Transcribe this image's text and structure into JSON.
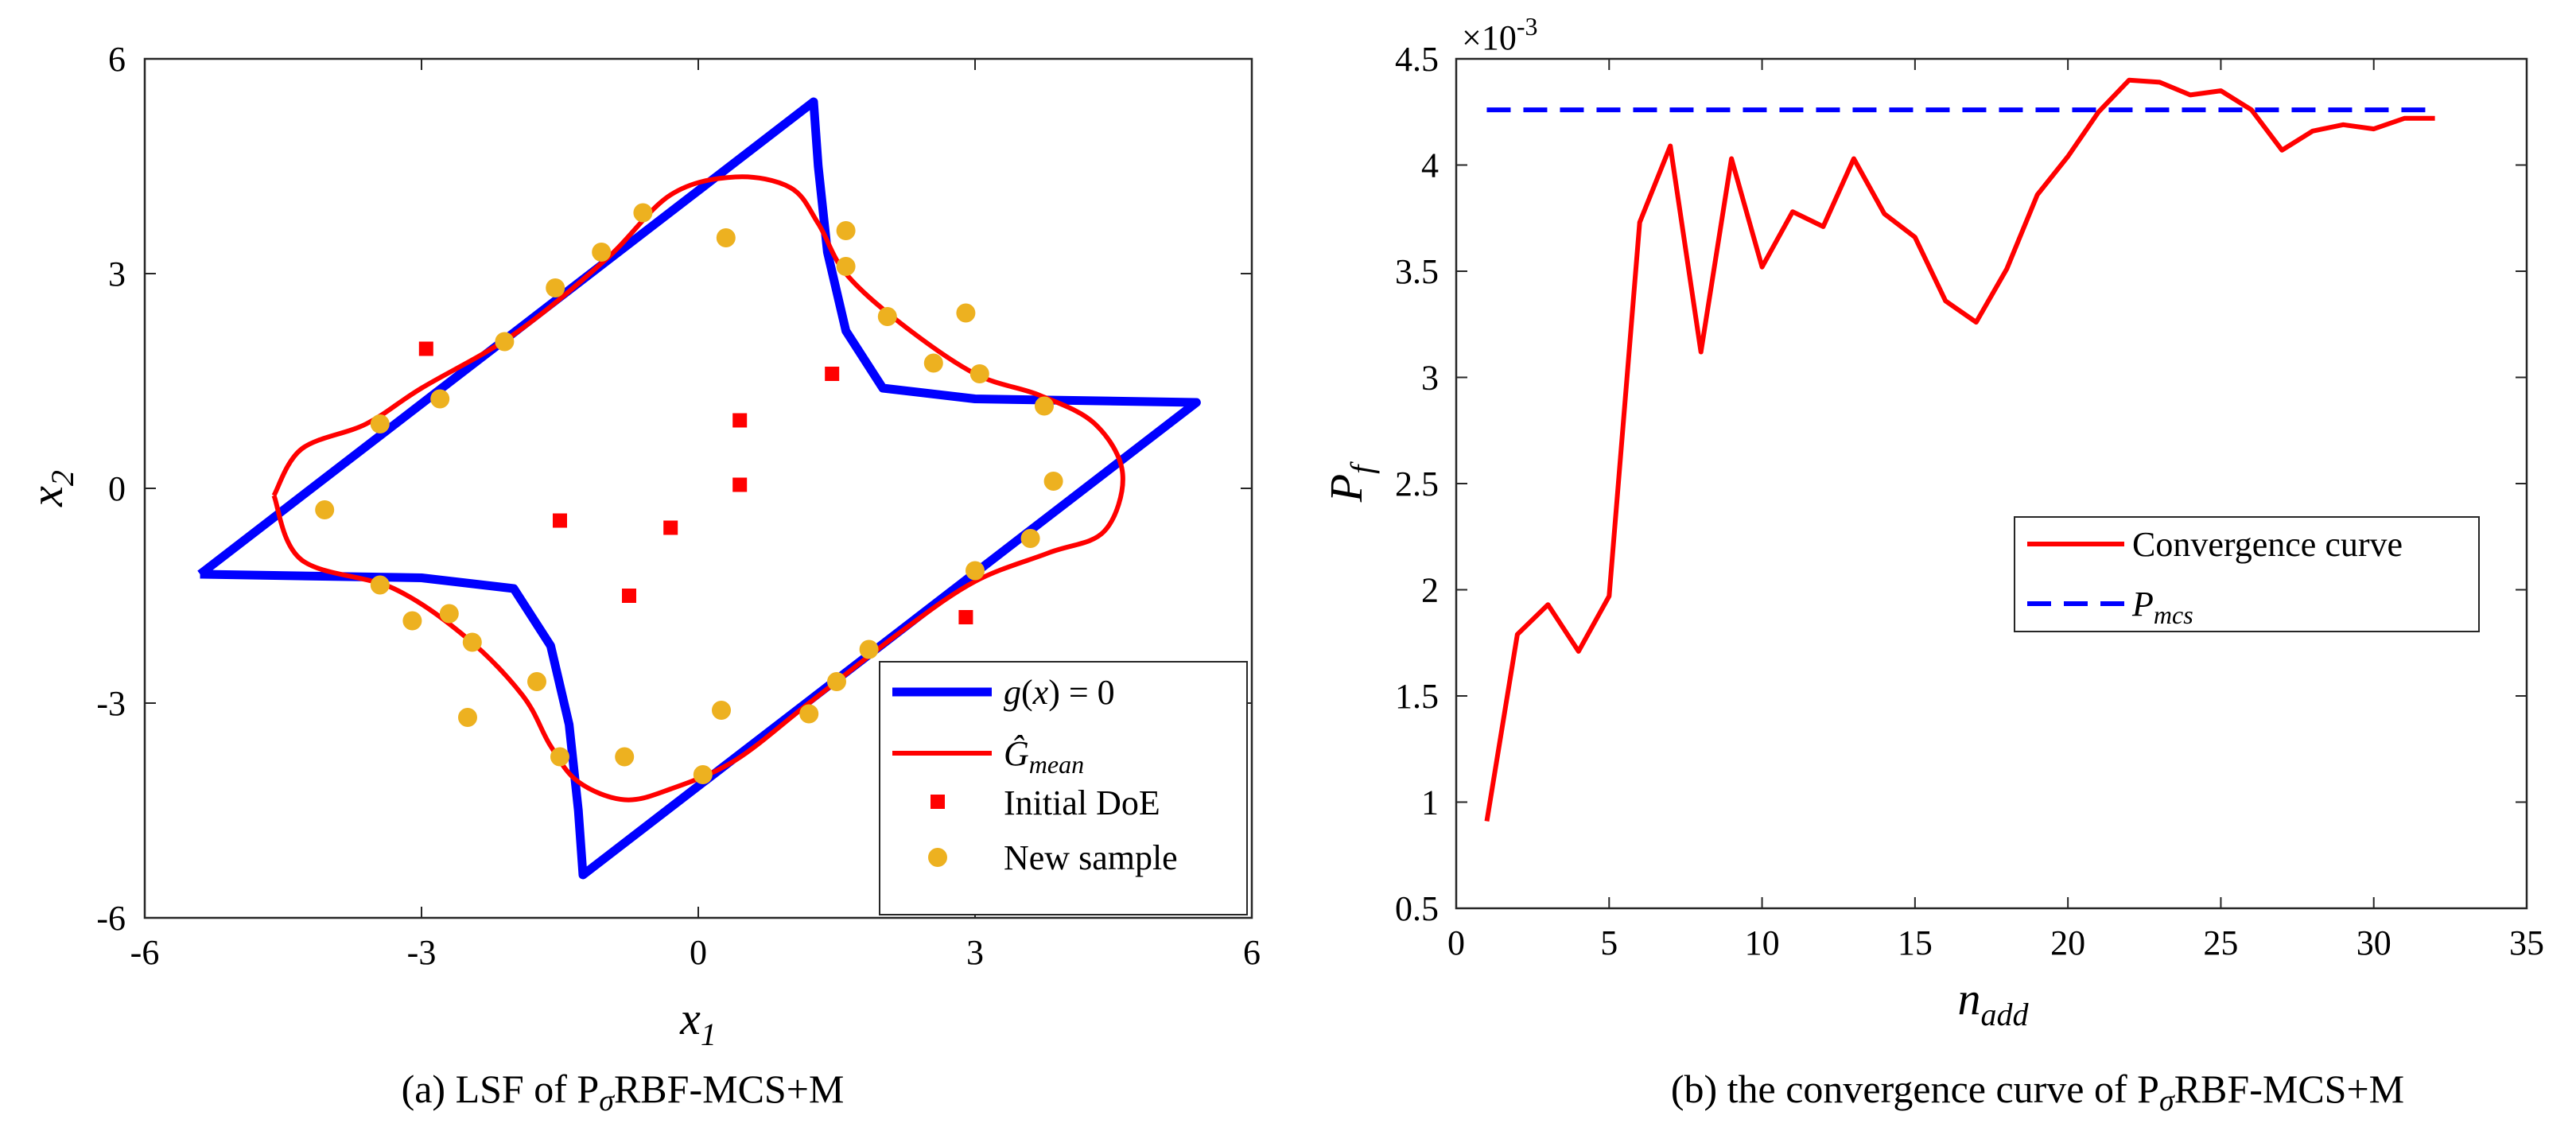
{
  "chart_data": [
    {
      "type": "scatter",
      "title": "",
      "caption": "(a) LSF of PσRBF-MCS+M",
      "xlabel": "x1",
      "ylabel": "x2",
      "xlim": [
        -6,
        6
      ],
      "ylim": [
        -6,
        6
      ],
      "xticks": [
        -6,
        -3,
        0,
        3,
        6
      ],
      "yticks": [
        -6,
        -3,
        0,
        3,
        6
      ],
      "xtick_labels": [
        "-6",
        "-3",
        "0",
        "3",
        "6"
      ],
      "ytick_labels": [
        "-6",
        "-3",
        "0",
        "3",
        "6"
      ],
      "legend_position": "bottom-right",
      "series": [
        {
          "name": "g(x) = 0",
          "kind": "line",
          "color": "#0000ff",
          "points": [
            [
              -5.4,
              -1.2
            ],
            [
              -3.0,
              -1.25
            ],
            [
              -2.0,
              -1.4
            ],
            [
              -1.6,
              -2.2
            ],
            [
              -1.4,
              -3.3
            ],
            [
              -1.3,
              -4.5
            ],
            [
              -1.25,
              -5.4
            ],
            [
              5.4,
              1.2
            ],
            [
              3.0,
              1.25
            ],
            [
              2.0,
              1.4
            ],
            [
              1.6,
              2.2
            ],
            [
              1.4,
              3.3
            ],
            [
              1.3,
              4.5
            ],
            [
              1.25,
              5.4
            ],
            [
              -5.4,
              -1.2
            ]
          ]
        },
        {
          "name": "Ĝmean",
          "kind": "line",
          "color": "#ff0000",
          "points": [
            [
              -4.6,
              -0.1
            ],
            [
              -4.3,
              0.55
            ],
            [
              -3.6,
              0.9
            ],
            [
              -3.0,
              1.4
            ],
            [
              -2.0,
              2.15
            ],
            [
              -1.0,
              3.2
            ],
            [
              -0.3,
              4.1
            ],
            [
              0.4,
              4.35
            ],
            [
              1.0,
              4.2
            ],
            [
              1.3,
              3.7
            ],
            [
              1.6,
              3.0
            ],
            [
              2.2,
              2.3
            ],
            [
              3.0,
              1.6
            ],
            [
              3.7,
              1.3
            ],
            [
              4.3,
              0.9
            ],
            [
              4.6,
              0.2
            ],
            [
              4.4,
              -0.6
            ],
            [
              3.8,
              -0.9
            ],
            [
              3.0,
              -1.3
            ],
            [
              2.2,
              -2.0
            ],
            [
              1.2,
              -3.0
            ],
            [
              0.4,
              -3.8
            ],
            [
              -0.3,
              -4.2
            ],
            [
              -0.8,
              -4.35
            ],
            [
              -1.3,
              -4.1
            ],
            [
              -1.6,
              -3.6
            ],
            [
              -1.9,
              -2.9
            ],
            [
              -2.5,
              -2.1
            ],
            [
              -3.3,
              -1.4
            ],
            [
              -4.3,
              -1.0
            ],
            [
              -4.6,
              -0.1
            ]
          ]
        },
        {
          "name": "Initial DoE",
          "kind": "marker-square",
          "color": "#ff0000",
          "points": [
            [
              -2.95,
              1.95
            ],
            [
              1.45,
              1.6
            ],
            [
              0.45,
              0.95
            ],
            [
              0.45,
              0.05
            ],
            [
              -1.5,
              -0.45
            ],
            [
              -0.3,
              -0.55
            ],
            [
              -0.75,
              -1.5
            ],
            [
              2.9,
              -1.8
            ]
          ]
        },
        {
          "name": "New sample",
          "kind": "marker-circle",
          "color": "#edb120",
          "points": [
            [
              -0.6,
              3.85
            ],
            [
              0.3,
              3.5
            ],
            [
              1.6,
              3.6
            ],
            [
              1.6,
              3.1
            ],
            [
              -1.05,
              3.3
            ],
            [
              -1.55,
              2.8
            ],
            [
              -2.1,
              2.05
            ],
            [
              -2.8,
              1.25
            ],
            [
              -3.45,
              0.9
            ],
            [
              -4.05,
              -0.3
            ],
            [
              -3.45,
              -1.35
            ],
            [
              -3.1,
              -1.85
            ],
            [
              -2.7,
              -1.75
            ],
            [
              -2.45,
              -2.15
            ],
            [
              -1.75,
              -2.7
            ],
            [
              -2.5,
              -3.2
            ],
            [
              -1.5,
              -3.75
            ],
            [
              -0.8,
              -3.75
            ],
            [
              0.05,
              -4.0
            ],
            [
              0.25,
              -3.1
            ],
            [
              1.2,
              -3.15
            ],
            [
              1.5,
              -2.7
            ],
            [
              1.85,
              -2.25
            ],
            [
              3.0,
              -1.15
            ],
            [
              3.6,
              -0.7
            ],
            [
              3.85,
              0.1
            ],
            [
              3.75,
              1.15
            ],
            [
              3.05,
              1.6
            ],
            [
              2.55,
              1.75
            ],
            [
              2.05,
              2.4
            ],
            [
              2.9,
              2.45
            ]
          ]
        }
      ]
    },
    {
      "type": "line",
      "title": "",
      "caption": "(b) the convergence curve of PσRBF-MCS+M",
      "xlabel": "n_add",
      "ylabel": "P_f",
      "y_multiplier": "×10⁻³",
      "xlim": [
        0,
        35
      ],
      "ylim": [
        0.5,
        4.5
      ],
      "xticks": [
        0,
        5,
        10,
        15,
        20,
        25,
        30,
        35
      ],
      "yticks": [
        0.5,
        1,
        1.5,
        2,
        2.5,
        3,
        3.5,
        4,
        4.5
      ],
      "xtick_labels": [
        "0",
        "5",
        "10",
        "15",
        "20",
        "25",
        "30",
        "35"
      ],
      "ytick_labels": [
        "0.5",
        "1",
        "1.5",
        "2",
        "2.5",
        "3",
        "3.5",
        "4",
        "4.5"
      ],
      "legend_position": "center-right",
      "series": [
        {
          "name": "Convergence curve",
          "kind": "line",
          "color": "#ff0000",
          "x": [
            1,
            2,
            3,
            4,
            5,
            6,
            7,
            8,
            9,
            10,
            11,
            12,
            13,
            14,
            15,
            16,
            17,
            18,
            19,
            20,
            21,
            22,
            23,
            24,
            25,
            26,
            27,
            28,
            29,
            30,
            31,
            32
          ],
          "values": [
            0.91,
            1.79,
            1.93,
            1.71,
            1.97,
            3.73,
            4.09,
            3.12,
            4.03,
            3.52,
            3.78,
            3.71,
            4.03,
            3.77,
            3.66,
            3.36,
            3.26,
            3.51,
            3.86,
            4.04,
            4.25,
            4.4,
            4.39,
            4.33,
            4.35,
            4.26,
            4.07,
            4.16,
            4.19,
            4.17,
            4.22,
            4.22
          ]
        },
        {
          "name": "Pmcs",
          "kind": "dashed",
          "color": "#0000ff",
          "x": [
            1,
            32
          ],
          "values": [
            4.26,
            4.26
          ]
        }
      ]
    }
  ]
}
